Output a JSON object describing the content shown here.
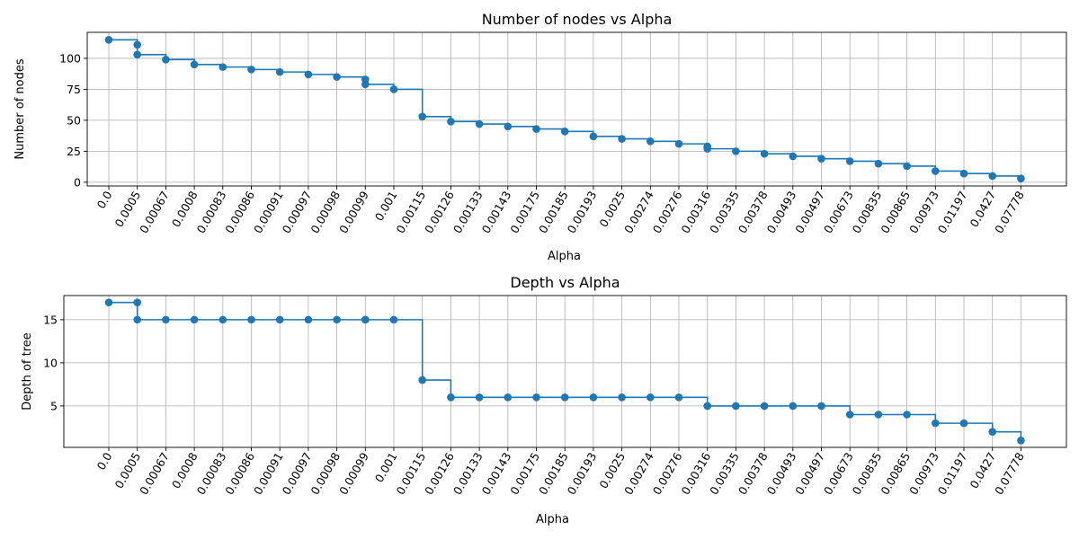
{
  "chart_data": [
    {
      "type": "line",
      "style": "step-post with markers",
      "title": "Number of nodes vs Alpha",
      "xlabel": "Alpha",
      "ylabel": "Number of nodes",
      "x_tick_labels": [
        "0.0",
        "0.0005",
        "0.00067",
        "0.0008",
        "0.00083",
        "0.00086",
        "0.00091",
        "0.00097",
        "0.00098",
        "0.00099",
        "0.001",
        "0.00115",
        "0.00126",
        "0.00133",
        "0.00143",
        "0.00175",
        "0.00185",
        "0.00193",
        "0.0025",
        "0.00274",
        "0.00276",
        "0.00316",
        "0.00335",
        "0.00378",
        "0.00493",
        "0.00497",
        "0.00673",
        "0.00835",
        "0.00865",
        "0.00973",
        "0.01197",
        "0.0427",
        "0.07778"
      ],
      "y_ticks": [
        0,
        25,
        50,
        75,
        100
      ],
      "ylim": [
        -3,
        121
      ],
      "grid": true,
      "color": "#1f77b4",
      "points": [
        [
          "0.0",
          115
        ],
        [
          "0.0005",
          111
        ],
        [
          "0.0005",
          103
        ],
        [
          "0.00067",
          99
        ],
        [
          "0.0008",
          95
        ],
        [
          "0.00083",
          93
        ],
        [
          "0.00086",
          91
        ],
        [
          "0.00091",
          89
        ],
        [
          "0.00097",
          87
        ],
        [
          "0.00098",
          85
        ],
        [
          "0.00099",
          83
        ],
        [
          "0.00099",
          79
        ],
        [
          "0.001",
          75
        ],
        [
          "0.00115",
          53
        ],
        [
          "0.00126",
          49
        ],
        [
          "0.00133",
          47
        ],
        [
          "0.00143",
          45
        ],
        [
          "0.00175",
          43
        ],
        [
          "0.00185",
          41
        ],
        [
          "0.00193",
          37
        ],
        [
          "0.0025",
          35
        ],
        [
          "0.00274",
          33
        ],
        [
          "0.00276",
          31
        ],
        [
          "0.00316",
          29
        ],
        [
          "0.00316",
          27
        ],
        [
          "0.00335",
          25
        ],
        [
          "0.00378",
          23
        ],
        [
          "0.00493",
          21
        ],
        [
          "0.00497",
          19
        ],
        [
          "0.00673",
          17
        ],
        [
          "0.00835",
          15
        ],
        [
          "0.00865",
          13
        ],
        [
          "0.00973",
          9
        ],
        [
          "0.01197",
          7
        ],
        [
          "0.0427",
          5
        ],
        [
          "0.07778",
          3
        ]
      ]
    },
    {
      "type": "line",
      "style": "step-post with markers",
      "title": "Depth vs Alpha",
      "xlabel": "Alpha",
      "ylabel": "Depth of tree",
      "x_tick_labels": [
        "0.0",
        "0.0005",
        "0.00067",
        "0.0008",
        "0.00083",
        "0.00086",
        "0.00091",
        "0.00097",
        "0.00098",
        "0.00099",
        "0.001",
        "0.00115",
        "0.00126",
        "0.00133",
        "0.00143",
        "0.00175",
        "0.00185",
        "0.00193",
        "0.0025",
        "0.00274",
        "0.00276",
        "0.00316",
        "0.00335",
        "0.00378",
        "0.00493",
        "0.00497",
        "0.00673",
        "0.00835",
        "0.00865",
        "0.00973",
        "0.01197",
        "0.0427",
        "0.07778"
      ],
      "y_ticks": [
        5,
        10,
        15
      ],
      "ylim": [
        0.2,
        17.8
      ],
      "grid": true,
      "color": "#1f77b4",
      "points": [
        [
          "0.0",
          17
        ],
        [
          "0.0005",
          17
        ],
        [
          "0.0005",
          15
        ],
        [
          "0.00067",
          15
        ],
        [
          "0.0008",
          15
        ],
        [
          "0.00083",
          15
        ],
        [
          "0.00086",
          15
        ],
        [
          "0.00091",
          15
        ],
        [
          "0.00097",
          15
        ],
        [
          "0.00098",
          15
        ],
        [
          "0.00099",
          15
        ],
        [
          "0.00099",
          15
        ],
        [
          "0.001",
          15
        ],
        [
          "0.00115",
          8
        ],
        [
          "0.00126",
          6
        ],
        [
          "0.00133",
          6
        ],
        [
          "0.00143",
          6
        ],
        [
          "0.00175",
          6
        ],
        [
          "0.00185",
          6
        ],
        [
          "0.00193",
          6
        ],
        [
          "0.0025",
          6
        ],
        [
          "0.00274",
          6
        ],
        [
          "0.00276",
          6
        ],
        [
          "0.00316",
          5
        ],
        [
          "0.00316",
          5
        ],
        [
          "0.00335",
          5
        ],
        [
          "0.00378",
          5
        ],
        [
          "0.00493",
          5
        ],
        [
          "0.00497",
          5
        ],
        [
          "0.00673",
          4
        ],
        [
          "0.00835",
          4
        ],
        [
          "0.00865",
          4
        ],
        [
          "0.00973",
          3
        ],
        [
          "0.01197",
          3
        ],
        [
          "0.0427",
          2
        ],
        [
          "0.07778",
          1
        ]
      ]
    }
  ]
}
